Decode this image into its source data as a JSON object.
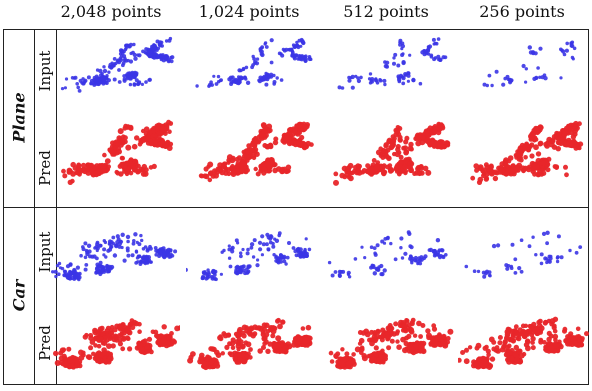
{
  "columns": [
    "2,048 points",
    "1,024 points",
    "512 points",
    "256 points"
  ],
  "groups": [
    {
      "label": "Plane",
      "rows": [
        "Input",
        "Pred"
      ]
    },
    {
      "label": "Car",
      "rows": [
        "Input",
        "Pred"
      ]
    }
  ],
  "colors": {
    "input": "#3b35e6",
    "pred": "#e8262a",
    "frame": "#222222"
  },
  "density": [
    1.0,
    0.6,
    0.35,
    0.18
  ]
}
